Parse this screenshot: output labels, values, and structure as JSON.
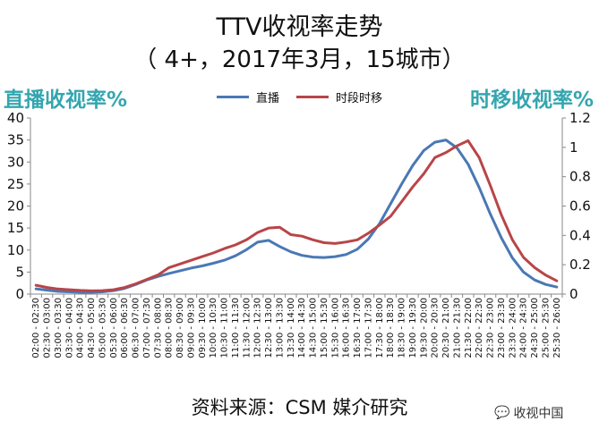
{
  "title_line1": "TTV收视率走势",
  "title_line2": "（ 4+，2017年3月，15城市）",
  "source": "资料来源：CSM 媒介研究",
  "watermark": "收视中国",
  "watermark_icon": "wechat-bubble-icon",
  "colors": {
    "live": "#4a78b5",
    "timeshift": "#b84548",
    "axis_title": "#33a6b0"
  },
  "chart_data": {
    "type": "line",
    "ylabel": "直播收视率%",
    "y2label": "时移收视率%",
    "ylim": [
      0,
      40
    ],
    "yticks": [
      0,
      5,
      10,
      15,
      20,
      25,
      30,
      35,
      40
    ],
    "y2lim": [
      0,
      1.2
    ],
    "y2ticks": [
      "0",
      "0.2",
      "0.4",
      "0.6",
      "0.8",
      "1",
      "1.2"
    ],
    "grid": false,
    "legend": "top-center",
    "categories": [
      "02:00 - 02:30",
      "02:30 - 03:00",
      "03:00 - 03:30",
      "03:30 - 04:00",
      "04:00 - 04:30",
      "04:30 - 05:00",
      "05:00 - 05:30",
      "05:30 - 06:00",
      "06:00 - 06:30",
      "06:30 - 07:00",
      "07:00 - 07:30",
      "07:30 - 08:00",
      "08:00 - 08:30",
      "08:30 - 09:00",
      "09:00 - 09:30",
      "09:30 - 10:00",
      "10:00 - 10:30",
      "10:30 - 11:00",
      "11:00 - 11:30",
      "11:30 - 12:00",
      "12:00 - 12:30",
      "12:30 - 13:00",
      "13:00 - 13:30",
      "13:30 - 14:00",
      "14:00 - 14:30",
      "14:30 - 15:00",
      "15:00 - 15:30",
      "15:30 - 16:00",
      "16:00 - 16:30",
      "16:30 - 17:00",
      "17:00 - 17:30",
      "17:30 - 18:00",
      "18:00 - 18:30",
      "18:30 - 19:00",
      "19:00 - 19:30",
      "19:30 - 20:00",
      "20:00 - 20:30",
      "20:30 - 21:00",
      "21:00 - 21:30",
      "21:30 - 22:00",
      "22:00 - 22:30",
      "22:30 - 23:00",
      "23:00 - 23:30",
      "23:30 - 24:00",
      "24:00 - 24:30",
      "24:30 - 25:00",
      "25:00 - 25:30",
      "25:30 - 26:00"
    ],
    "tick_labels": [
      "02:00 - 02:30",
      "02:30 - 03:00",
      "03:00 - 03:30",
      "03:30 - 04:00",
      "04:00 - 04:30",
      "04:30 - 05:00",
      "05:00 - 05:30",
      "05:30 - 06:00",
      "06:00 - 06:30",
      "06:30 - 07:00",
      "07:00 - 07:30",
      "07:30 - 08:00",
      "08:00 - 08:30",
      "08:30 - 09:00",
      "09:00 - 09:30",
      "09:30 - 10:00",
      "10:00 - 10:30",
      "10:30 - 11:00",
      "11:00 - 11:30",
      "11:30 - 12:00",
      "12:00 - 12:30",
      "12:30 - 13:00",
      "13:00 - 13:30",
      "13:30 - 14:00",
      "14:00 - 14:30",
      "14:30 - 15:00",
      "15:00 - 15:30",
      "15:30 - 16:00",
      "16:00 - 16:30",
      "16:30 - 17:00",
      "17:00 - 17:30",
      "17:30 - 18:00",
      "18:00 - 18:30",
      "18:30 - 19:00",
      "19:00 - 19:30",
      "19:30 - 20:00",
      "20:00 - 20:30",
      "20:30 - 21:00",
      "21:00 - 21:30",
      "21:30 - 22:00",
      "22:00 - 22:30",
      "22:30 - 23:00",
      "23:00 - 23:30",
      "23:30 - 24:00",
      "24:00 - 24:30",
      "24:30 - 25:00",
      "25:00 - 25:30",
      "25:30 - 26:00"
    ],
    "series": [
      {
        "name": "直播",
        "axis": "left",
        "values": [
          1.2,
          0.9,
          0.6,
          0.5,
          0.4,
          0.4,
          0.5,
          0.8,
          1.3,
          2.2,
          3.2,
          4.0,
          4.7,
          5.3,
          5.9,
          6.4,
          7.0,
          7.7,
          8.7,
          10.1,
          11.8,
          12.2,
          10.8,
          9.6,
          8.8,
          8.4,
          8.3,
          8.5,
          9.0,
          10.2,
          12.5,
          16.0,
          20.5,
          25.0,
          29.2,
          32.6,
          34.5,
          35.0,
          33.2,
          29.5,
          24.2,
          18.2,
          12.8,
          8.2,
          5.0,
          3.2,
          2.2,
          1.6
        ]
      },
      {
        "name": "时段时移",
        "axis": "right",
        "values": [
          0.06,
          0.045,
          0.035,
          0.03,
          0.025,
          0.022,
          0.024,
          0.03,
          0.045,
          0.07,
          0.1,
          0.13,
          0.18,
          0.205,
          0.23,
          0.255,
          0.28,
          0.31,
          0.335,
          0.37,
          0.42,
          0.45,
          0.455,
          0.405,
          0.395,
          0.37,
          0.35,
          0.345,
          0.355,
          0.37,
          0.415,
          0.47,
          0.53,
          0.63,
          0.73,
          0.82,
          0.93,
          0.965,
          1.01,
          1.045,
          0.93,
          0.74,
          0.54,
          0.37,
          0.25,
          0.18,
          0.13,
          0.09
        ]
      }
    ]
  }
}
